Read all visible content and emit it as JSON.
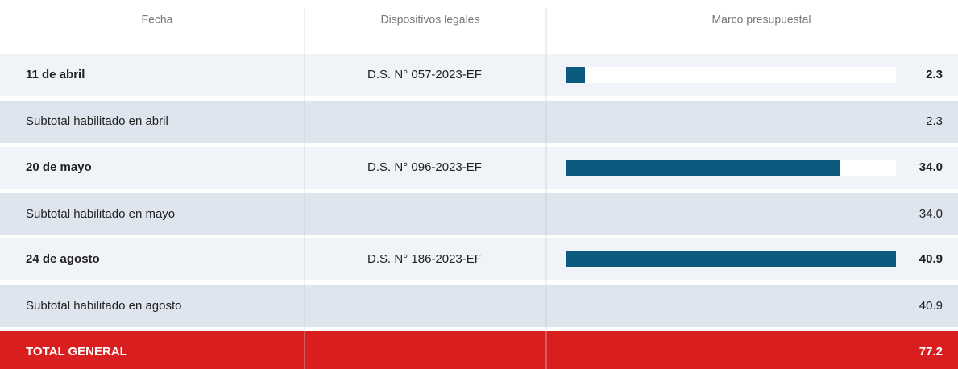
{
  "header": [
    "Fecha",
    "Dispositivos legales",
    "Marco presupuestal"
  ],
  "rows": [
    {
      "fecha": "11 de abril",
      "dispositivo": "D.S. N° 057-2023-EF",
      "monto": 2.3
    },
    {
      "subtotal": "Subtotal habilitado en abril",
      "monto": 2.3
    },
    {
      "fecha": "20 de mayo",
      "dispositivo": "D.S. N° 096-2023-EF",
      "monto": {
        "value": 34,
        "label": "34.0"
      }
    },
    {
      "subtotal": "Subtotal habilitado en mayo",
      "monto": {
        "value": 34,
        "label": "34.0"
      }
    },
    {
      "fecha": "24 de agosto",
      "dispositivo": "D.S. N° 186-2023-EF",
      "monto": 40.9
    },
    {
      "subtotal": "Subtotal habilitado en agosto",
      "monto": 40.9
    }
  ],
  "total": {
    "label": "TOTAL GENERAL",
    "monto": 77.2
  }
}
